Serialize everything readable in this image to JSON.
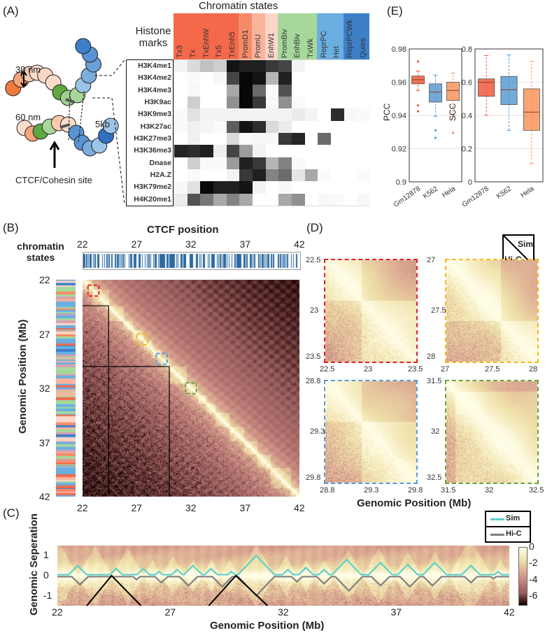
{
  "panel_labels": {
    "a": "(A)",
    "b": "(B)",
    "c": "(C)",
    "d": "(D)",
    "e": "(E)"
  },
  "panel_a": {
    "diagram_labels": {
      "spacing_30": "30 nm",
      "spacing_60": "60 nm",
      "bead_size": "5kb",
      "ctcf_site": "CTCF/Cohesin site"
    },
    "histone_title": "Histone marks",
    "chromatin_title": "Chromatin states",
    "colors": {
      "tx": "#f4694a",
      "promd1": "#f68a68",
      "promu": "#f9b49c",
      "enhw1": "#fcd6c8",
      "biv": "#a6d89c",
      "repr": "#6aaee2",
      "quies": "#3d80c8"
    },
    "chart_data": {
      "type": "heatmap",
      "columns": [
        {
          "label": "Tx3",
          "group": "tx"
        },
        {
          "label": "Tx",
          "group": "tx"
        },
        {
          "label": "TxEnhW",
          "group": "tx"
        },
        {
          "label": "Tx5",
          "group": "tx"
        },
        {
          "label": "TxEnh5",
          "group": "tx"
        },
        {
          "label": "PromD1",
          "group": "promd1"
        },
        {
          "label": "PromU",
          "group": "promu"
        },
        {
          "label": "EnhW1",
          "group": "enhw1"
        },
        {
          "label": "PromBiv",
          "group": "biv"
        },
        {
          "label": "EnhBiv",
          "group": "biv"
        },
        {
          "label": "TxWk",
          "group": "biv"
        },
        {
          "label": "ReprPC",
          "group": "repr"
        },
        {
          "label": "Het",
          "group": "repr"
        },
        {
          "label": "ReprPCWk",
          "group": "quies"
        },
        {
          "label": "Quies",
          "group": "quies"
        }
      ],
      "rows": [
        "H3K4me1",
        "H3K4me2",
        "H3K4me3",
        "H3K9ac",
        "H3K9me3",
        "H3K27ac",
        "H3K27me3",
        "H3K36me3",
        "Dnase",
        "H2A.Z",
        "H3K79me2",
        "H4K20me1"
      ],
      "values": [
        [
          0.05,
          0.15,
          0.25,
          0.2,
          0.95,
          0.9,
          0.9,
          0.8,
          0.75,
          0.05,
          0,
          0,
          0,
          0,
          0
        ],
        [
          0,
          0.02,
          0,
          0.03,
          0.75,
          1,
          0.95,
          0.3,
          0.9,
          0,
          0,
          0,
          0,
          0,
          0
        ],
        [
          0,
          0.03,
          0,
          0,
          0.35,
          1,
          0.6,
          0.02,
          0.7,
          0,
          0,
          0,
          0,
          0,
          0
        ],
        [
          0,
          0.2,
          0,
          0,
          0.45,
          1,
          0.8,
          0.03,
          0.45,
          0.02,
          0,
          0,
          0,
          0,
          0
        ],
        [
          0.02,
          0.12,
          0.05,
          0.05,
          0.05,
          0.05,
          0.05,
          0.05,
          0.05,
          0.08,
          0.05,
          0,
          0.85,
          0.03,
          0.02
        ],
        [
          0.02,
          0.06,
          0.04,
          0.02,
          0.65,
          0.95,
          0.85,
          0.15,
          0.08,
          0,
          0,
          0,
          0,
          0,
          0
        ],
        [
          0,
          0.06,
          0,
          0,
          0.15,
          0.02,
          0.03,
          0.03,
          0.8,
          0.88,
          0,
          0.6,
          0,
          0,
          0
        ],
        [
          0.88,
          0.85,
          0.9,
          0.07,
          0.75,
          0.4,
          0.05,
          0,
          0,
          0,
          0,
          0,
          0,
          0,
          0
        ],
        [
          0,
          0.2,
          0.02,
          0.02,
          0.4,
          0.9,
          0.8,
          0.3,
          0.5,
          0.02,
          0,
          0,
          0,
          0,
          0
        ],
        [
          0,
          0.02,
          0,
          0,
          0.05,
          0.8,
          0.9,
          0.5,
          0.6,
          0.1,
          0.35,
          0.02,
          0,
          0,
          0.02
        ],
        [
          0.03,
          0.12,
          1,
          0.9,
          0.9,
          0.95,
          0.05,
          0,
          0.03,
          0,
          0,
          0,
          0,
          0,
          0
        ],
        [
          0.08,
          0.7,
          0.55,
          0.35,
          0.5,
          0.35,
          0,
          0,
          0.35,
          0.45,
          0,
          0.03,
          0.02,
          0,
          0.03
        ]
      ],
      "scale": "0 = white, 1 = black"
    }
  },
  "panel_b": {
    "ctcf_title": "CTCF position",
    "states_title": "chromatin states",
    "ylabel": "Genomic Position (Mb)",
    "ticks": [
      "22",
      "27",
      "32",
      "37",
      "42"
    ],
    "tick_values": [
      22,
      27,
      32,
      37,
      42
    ],
    "range_mb": [
      22,
      42
    ],
    "upper_triangle": "Sim",
    "lower_triangle": "Hi-C",
    "zoom_boxes": [
      {
        "range": [
          22.5,
          23.5
        ],
        "color": "#e8201c"
      },
      {
        "range": [
          27,
          28
        ],
        "color": "#f6b91c"
      },
      {
        "range": [
          28.8,
          29.8
        ],
        "color": "#5b9bd8"
      },
      {
        "range": [
          31.5,
          32.5
        ],
        "color": "#6aa43c"
      }
    ],
    "black_domains": [
      [
        22,
        24.4
      ],
      [
        22,
        30
      ]
    ],
    "ctcf_color": "#2c6aa0"
  },
  "panel_d": {
    "legend": {
      "upper": "Sim",
      "lower": "Hi-C"
    },
    "xlabel": "Genomic Position (Mb)",
    "panels": [
      {
        "ticks": [
          "22.5",
          "23",
          "23.5"
        ],
        "ytop": "22.5",
        "ymid": "23",
        "ybot": "23.5",
        "range": [
          22.5,
          23.5
        ],
        "color": "#e8201c"
      },
      {
        "ticks": [
          "27",
          "27.5",
          "28"
        ],
        "ytop": "27",
        "ymid": "27.5",
        "ybot": "28",
        "range": [
          27,
          28
        ],
        "color": "#f6b91c"
      },
      {
        "ticks": [
          "28.8",
          "29.3",
          "29.8"
        ],
        "ytop": "28.8",
        "ymid": "29.3",
        "ybot": "29.8",
        "range": [
          28.8,
          29.8
        ],
        "color": "#5b9bd8"
      },
      {
        "ticks": [
          "31.5",
          "32",
          "32.5"
        ],
        "ytop": "31.5",
        "ymid": "32",
        "ybot": "32.5",
        "range": [
          31.5,
          32.5
        ],
        "color": "#6aa43c"
      }
    ]
  },
  "panel_c": {
    "legend": [
      {
        "name": "Sim",
        "color": "#5fd0c8"
      },
      {
        "name": "Hi-C",
        "color": "#808080"
      }
    ],
    "ylabel": "Genomic Seperation",
    "xlabel": "Genomic Position (Mb)",
    "xticks": [
      "22",
      "27",
      "32",
      "37",
      "42"
    ],
    "xtick_values": [
      22,
      27,
      32,
      37,
      42
    ],
    "yticks": [
      "1",
      "0",
      "-1"
    ],
    "ytick_values": [
      1,
      0,
      -1
    ],
    "xlim": [
      22,
      42
    ],
    "ylim": [
      -1.5,
      1.5
    ],
    "colorbar": {
      "ticks": [
        "0",
        "-2",
        "-4",
        "-6"
      ],
      "values": [
        0,
        -2,
        -4,
        -6
      ],
      "range": [
        -7,
        0
      ]
    },
    "chart_data": {
      "type": "line",
      "sim_peaks": [
        [
          22.9,
          0.5
        ],
        [
          24.6,
          0.35
        ],
        [
          25.8,
          0.35
        ],
        [
          26.5,
          0.2
        ],
        [
          27.3,
          0.3
        ],
        [
          28,
          0.5
        ],
        [
          28.8,
          0.35
        ],
        [
          29.7,
          0.2
        ],
        [
          30.8,
          1.0
        ],
        [
          32.2,
          0.3
        ],
        [
          33,
          0.4
        ],
        [
          33.8,
          0.3
        ],
        [
          34.8,
          0.8
        ],
        [
          36.3,
          0.65
        ],
        [
          37.5,
          0.55
        ],
        [
          38.7,
          0.65
        ],
        [
          40.3,
          0.5
        ],
        [
          41.5,
          0.2
        ]
      ],
      "hic_valleys": [
        [
          23,
          -0.45
        ],
        [
          25.5,
          -0.2
        ],
        [
          26.6,
          -0.35
        ],
        [
          27.8,
          -0.5
        ],
        [
          29.3,
          -0.55
        ],
        [
          30.8,
          -1.0
        ],
        [
          32.6,
          -0.3
        ],
        [
          33.8,
          -0.4
        ],
        [
          34.9,
          -0.75
        ],
        [
          36.3,
          -0.5
        ],
        [
          37.6,
          -0.55
        ],
        [
          38.6,
          -0.5
        ],
        [
          40.3,
          -0.35
        ],
        [
          41.3,
          -0.15
        ]
      ],
      "black_lines": [
        [
          [
            23.3,
            -1.5
          ],
          [
            24.4,
            0
          ],
          [
            25.7,
            -1.5
          ]
        ],
        [
          [
            28.7,
            -1.5
          ],
          [
            29.9,
            0
          ],
          [
            31.3,
            -1.5
          ]
        ]
      ]
    }
  },
  "panel_e": {
    "chart_data": [
      {
        "type": "box",
        "ylabel": "PCC",
        "ylim": [
          0.9,
          0.98
        ],
        "yticks": [
          "0.9",
          "0.92",
          "0.94",
          "0.96",
          "0.98"
        ],
        "ytick_values": [
          0.9,
          0.92,
          0.94,
          0.96,
          0.98
        ],
        "categories": [
          "Gm12878",
          "K562",
          "Hela"
        ],
        "boxes": [
          {
            "median": 0.9615,
            "q1": 0.959,
            "q3": 0.9637,
            "whisker_low": 0.955,
            "whisker_high": 0.9667,
            "outliers": [
              0.9725,
              0.946,
              0.9425
            ],
            "color": "#f05a3c"
          },
          {
            "median": 0.954,
            "q1": 0.948,
            "q3": 0.959,
            "whisker_low": 0.9395,
            "whisker_high": 0.9643,
            "outliers": [
              0.931,
              0.9265
            ],
            "color": "#5b9bd0"
          },
          {
            "median": 0.955,
            "q1": 0.949,
            "q3": 0.96,
            "whisker_low": 0.94,
            "whisker_high": 0.9655,
            "outliers": [
              0.9295
            ],
            "color": "#f7945c"
          }
        ]
      },
      {
        "type": "box",
        "ylabel": "SCC",
        "ylim": [
          0,
          0.8
        ],
        "yticks": [
          "0",
          "0.2",
          "0.4",
          "0.6",
          "0.8"
        ],
        "ytick_values": [
          0,
          0.2,
          0.4,
          0.6,
          0.8
        ],
        "categories": [
          "Gm12878",
          "K562",
          "Hela"
        ],
        "boxes": [
          {
            "median": 0.6,
            "q1": 0.515,
            "q3": 0.62,
            "whisker_low": 0.4,
            "whisker_high": 0.76,
            "outliers": [],
            "color": "#f05a3c"
          },
          {
            "median": 0.555,
            "q1": 0.465,
            "q3": 0.635,
            "whisker_low": 0.31,
            "whisker_high": 0.765,
            "outliers": [],
            "color": "#5b9bd0"
          },
          {
            "median": 0.42,
            "q1": 0.31,
            "q3": 0.56,
            "whisker_low": 0.11,
            "whisker_high": 0.725,
            "outliers": [],
            "color": "#f7945c"
          }
        ]
      }
    ]
  }
}
